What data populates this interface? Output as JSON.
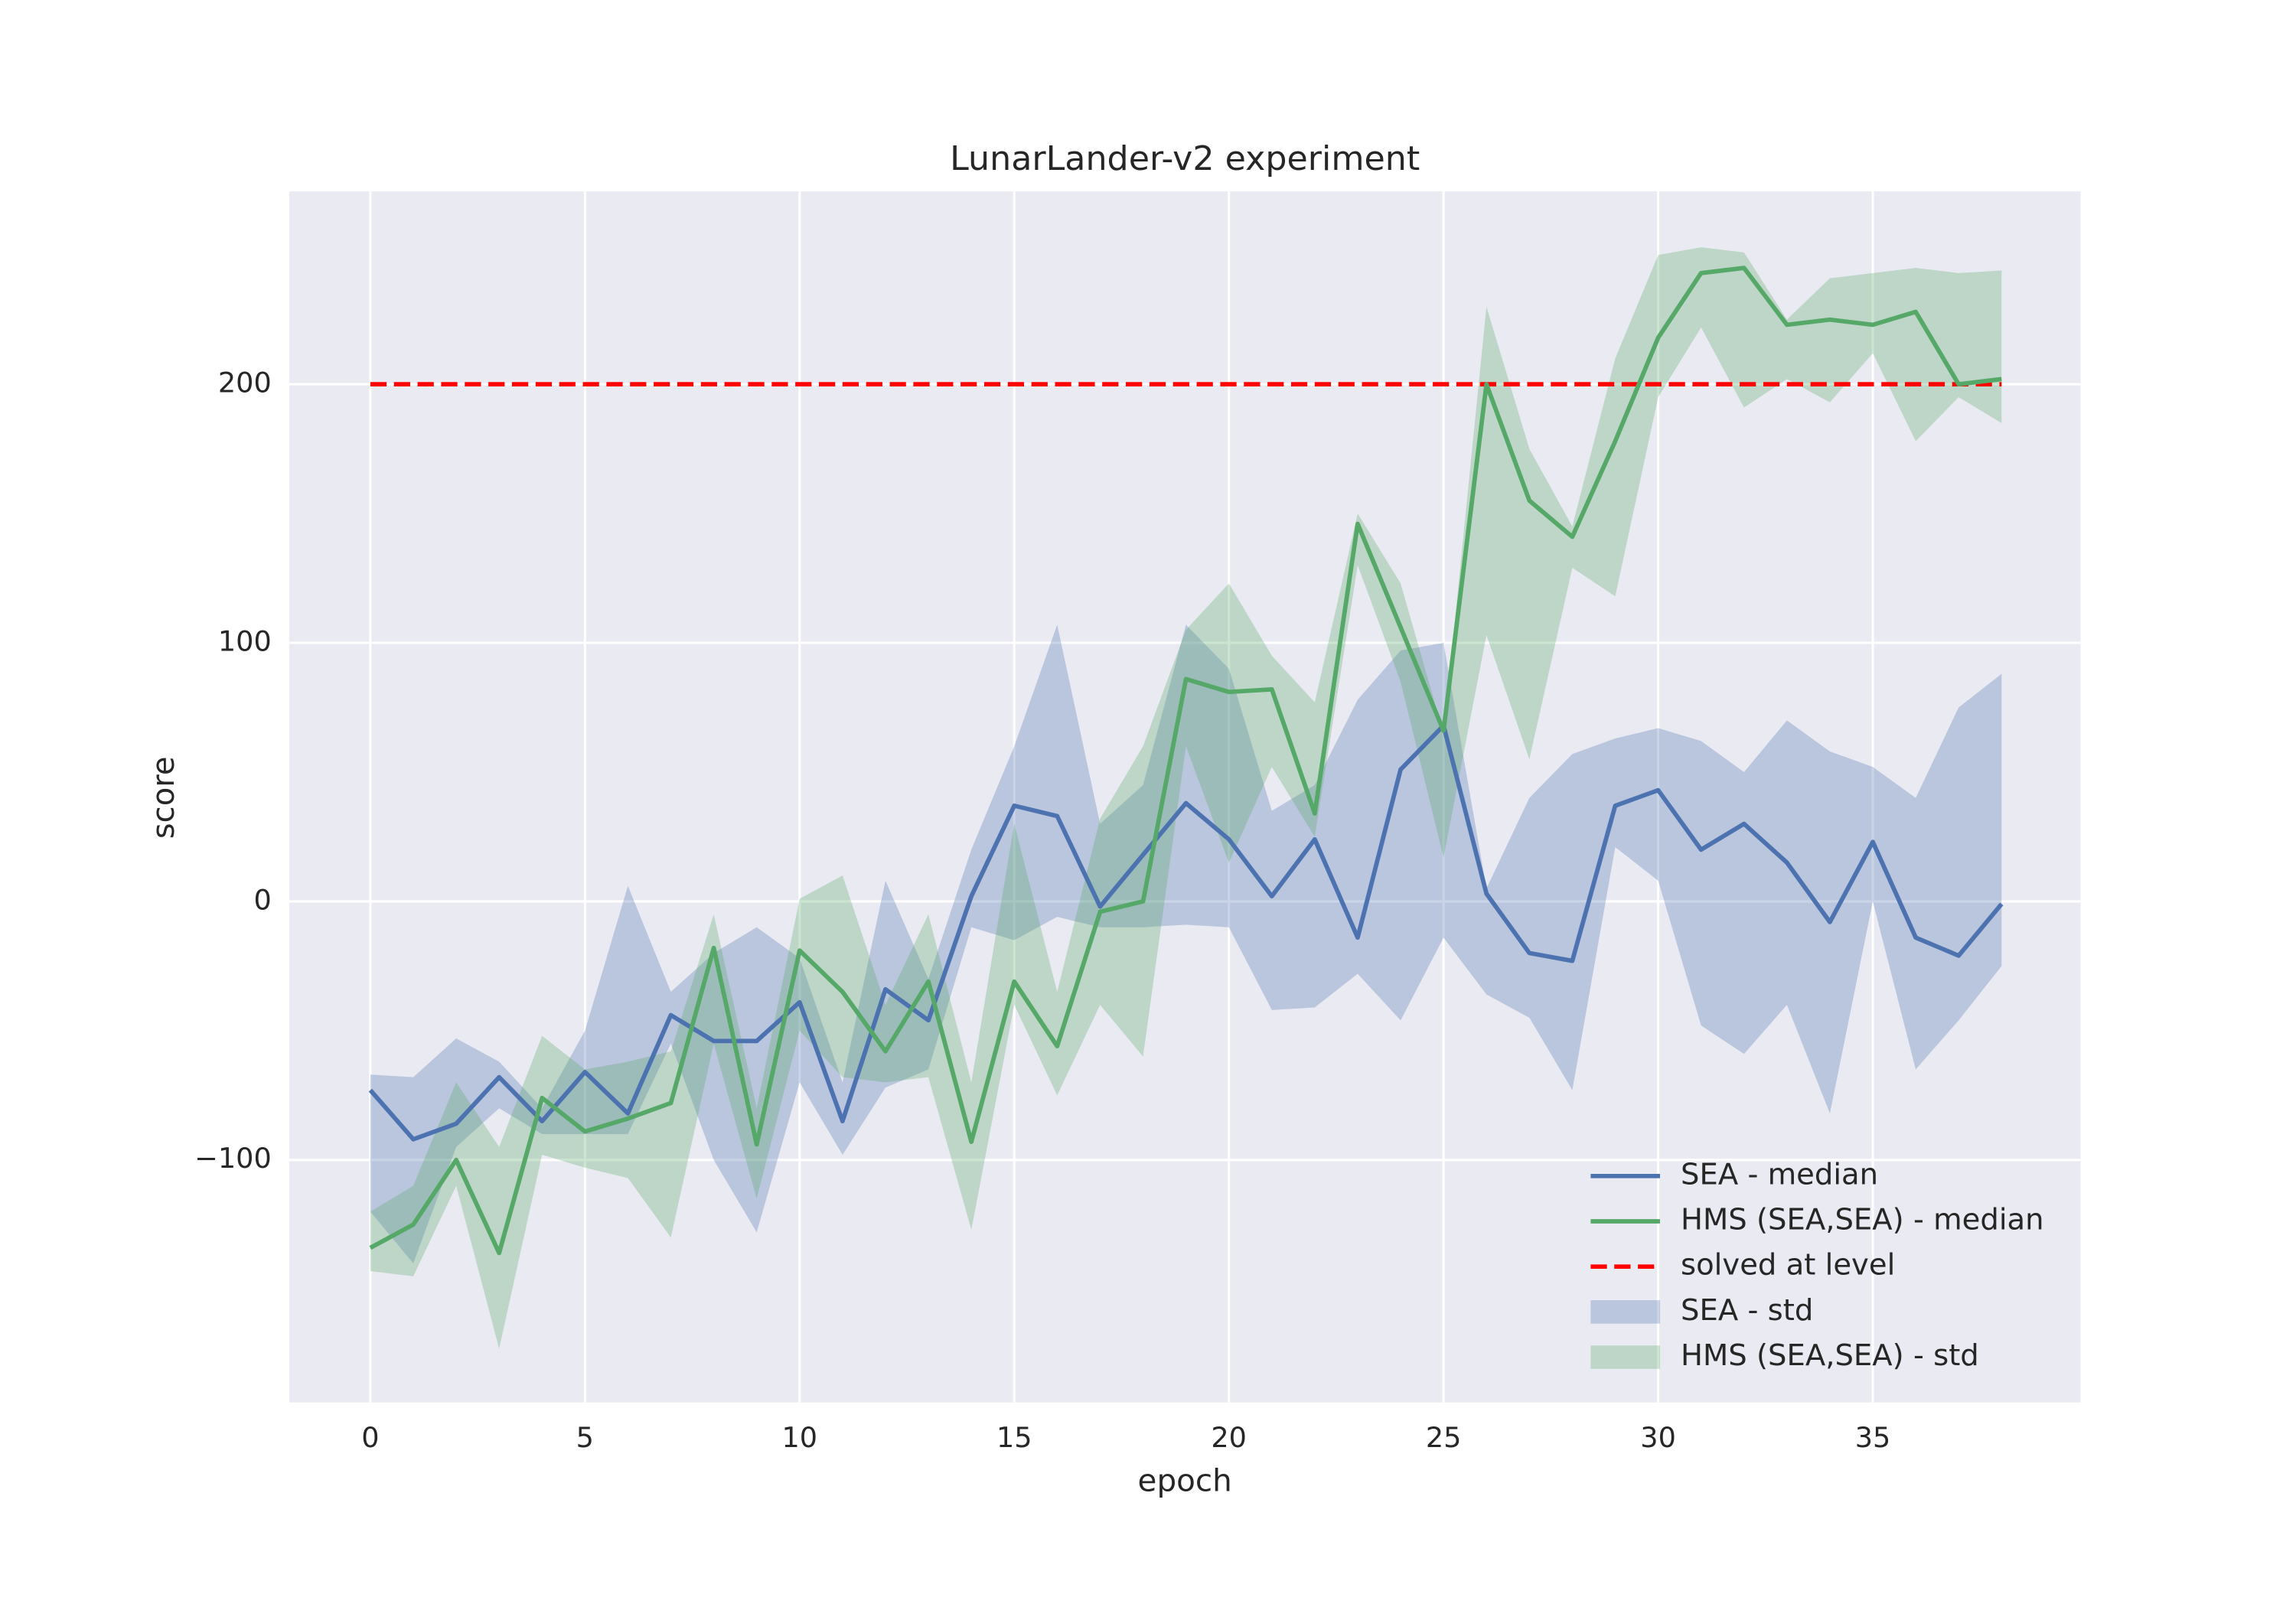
{
  "chart_data": {
    "type": "line",
    "title": "LunarLander-v2 experiment",
    "xlabel": "epoch",
    "ylabel": "score",
    "x": [
      0,
      1,
      2,
      3,
      4,
      5,
      6,
      7,
      8,
      9,
      10,
      11,
      12,
      13,
      14,
      15,
      16,
      17,
      18,
      19,
      20,
      21,
      22,
      23,
      24,
      25,
      26,
      27,
      28,
      29,
      30,
      31,
      32,
      33,
      34,
      35,
      36,
      37,
      38
    ],
    "series": [
      {
        "name": "SEA - median",
        "color": "#4c72b0",
        "values": [
          -73,
          -92,
          -86,
          -68,
          -85,
          -66,
          -82,
          -44,
          -54,
          -54,
          -39,
          -85,
          -34,
          -46,
          2,
          37,
          33,
          -2,
          18,
          38,
          24,
          2,
          24,
          -14,
          51,
          68,
          3,
          -20,
          -23,
          37,
          43,
          20,
          30,
          15,
          -8,
          23,
          -14,
          -21,
          -1
        ]
      },
      {
        "name": "HMS (SEA,SEA) - median",
        "color": "#55a868",
        "values": [
          -134,
          -125,
          -100,
          -136,
          -76,
          -89,
          -84,
          -78,
          -18,
          -94,
          -19,
          -35,
          -58,
          -31,
          -93,
          -31,
          -56,
          -4,
          0,
          86,
          81,
          82,
          34,
          146,
          106,
          66,
          200,
          155,
          141,
          178,
          218,
          243,
          245,
          223,
          225,
          223,
          228,
          200,
          202
        ]
      }
    ],
    "bands": [
      {
        "name": "SEA - std",
        "color": "#4c72b0",
        "upper": [
          -67,
          -68,
          -53,
          -62,
          -80,
          -50,
          6,
          -35,
          -20,
          -10,
          -22,
          -70,
          8,
          -30,
          20,
          60,
          107,
          30,
          45,
          107,
          90,
          35,
          45,
          78,
          97,
          100,
          5,
          40,
          57,
          63,
          67,
          62,
          50,
          70,
          58,
          52,
          40,
          75,
          88
        ],
        "lower": [
          -120,
          -140,
          -95,
          -80,
          -90,
          -90,
          -90,
          -55,
          -100,
          -128,
          -70,
          -98,
          -72,
          -65,
          -10,
          -15,
          -6,
          -10,
          -10,
          -9,
          -10,
          -42,
          -41,
          -28,
          -46,
          -14,
          -36,
          -45,
          -73,
          21,
          8,
          -48,
          -59,
          -40,
          -82,
          0,
          -65,
          -46,
          -25
        ]
      },
      {
        "name": "HMS (SEA,SEA) - std",
        "color": "#55a868",
        "upper": [
          -120,
          -110,
          -70,
          -95,
          -52,
          -65,
          -62,
          -58,
          -5,
          -80,
          1,
          10,
          -40,
          -5,
          -70,
          30,
          -35,
          32,
          60,
          105,
          123,
          95,
          77,
          150,
          123,
          65,
          230,
          175,
          145,
          210,
          250,
          253,
          251,
          225,
          241,
          243,
          245,
          243,
          244
        ],
        "lower": [
          -143,
          -145,
          -110,
          -173,
          -98,
          -103,
          -107,
          -130,
          -55,
          -115,
          -50,
          -68,
          -70,
          -68,
          -127,
          -40,
          -75,
          -40,
          -60,
          60,
          15,
          52,
          25,
          130,
          85,
          17,
          103,
          55,
          129,
          118,
          195,
          222,
          191,
          202,
          193,
          212,
          178,
          195,
          185
        ]
      }
    ],
    "reference_line": {
      "name": "solved at level",
      "value": 200,
      "color": "#ff0000"
    },
    "xlim": [
      -1.89,
      39.84
    ],
    "ylim": [
      -193.8,
      274.6
    ],
    "xticks": [
      0,
      5,
      10,
      15,
      20,
      25,
      30,
      35
    ],
    "yticks": [
      {
        "value": -100,
        "label": "−100"
      },
      0,
      100,
      200
    ],
    "grid": true,
    "legend": "lower right"
  }
}
